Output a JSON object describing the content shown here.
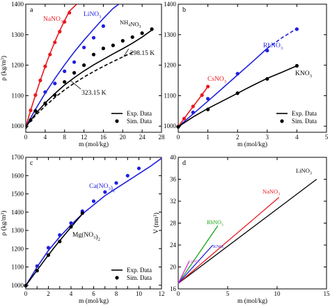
{
  "chart_data": [
    {
      "type": "line",
      "panel": "a",
      "xlabel": "m (mol/kg)",
      "ylabel": "ρ (kg/m³)",
      "xlim": [
        0,
        28
      ],
      "ylim": [
        980,
        1400
      ],
      "xticks": [
        0,
        4,
        8,
        12,
        16,
        20,
        24,
        28
      ],
      "yticks": [
        1000,
        1100,
        1200,
        1300,
        1400
      ],
      "legend": {
        "placement": "bottom-right",
        "exp_label": "Exp. Data",
        "sim_label": "Sim. Data"
      },
      "series": [
        {
          "name": "NaNO3",
          "label_main": "NaNO",
          "label_sub": "3",
          "color": "#e8191f",
          "curve": {
            "x": [
              0,
              1,
              2,
              3,
              4,
              5,
              6,
              7,
              8,
              9,
              10.5
            ],
            "y": [
              998,
              1052,
              1102,
              1150,
              1196,
              1238,
              1277,
              1313,
              1346,
              1377,
              1400
            ]
          },
          "points": {
            "x": [
              0,
              1,
              2,
              3,
              4,
              5,
              6,
              7,
              8,
              9
            ],
            "y": [
              998,
              1052,
              1102,
              1150,
              1196,
              1235,
              1275,
              1310,
              1342,
              1372
            ]
          }
        },
        {
          "name": "LiNO3",
          "label_main": "LiNO",
          "label_sub": "3",
          "color": "#1f1fe0",
          "curve": {
            "x": [
              0,
              2,
              4,
              6,
              8,
              10,
              12,
              14,
              16,
              18,
              19.2
            ],
            "y": [
              998,
              1055,
              1108,
              1156,
              1201,
              1243,
              1282,
              1318,
              1353,
              1386,
              1400
            ]
          },
          "points": {
            "x": [
              2,
              4,
              6,
              8,
              10,
              12,
              14,
              16
            ],
            "y": [
              1050,
              1112,
              1140,
              1180,
              1210,
              1258,
              1290,
              1328
            ]
          }
        },
        {
          "name": "NH4NO3",
          "label_main": "NH",
          "label_sub": "4",
          "label_main2": "NO",
          "label_sub2": "3",
          "color": "#000000",
          "curve": {
            "x": [
              0,
              2,
              4,
              6,
              8,
              10,
              12,
              14,
              16,
              18,
              20,
              22,
              24,
              26
            ],
            "y": [
              998,
              1040,
              1076,
              1107,
              1135,
              1159,
              1181,
              1201,
              1219,
              1237,
              1254,
              1272,
              1292,
              1315
            ]
          },
          "curve_dashed": {
            "x": [
              0,
              2,
              4,
              6,
              8,
              10,
              12,
              14,
              16,
              18,
              20,
              22
            ],
            "y": [
              998,
              1035,
              1066,
              1094,
              1119,
              1141,
              1161,
              1179,
              1196,
              1212,
              1227,
              1242
            ]
          },
          "points": {
            "x": [
              0,
              1,
              2,
              4,
              6,
              8,
              10,
              12,
              14,
              16,
              18,
              20,
              22,
              24,
              26
            ],
            "y": [
              998,
              1020,
              1050,
              1075,
              1102,
              1145,
              1175,
              1200,
              1235,
              1255,
              1265,
              1280,
              1292,
              1305,
              1318
            ]
          }
        }
      ],
      "annotations": [
        {
          "text": "298.15 K",
          "x": 21.5,
          "y": 1240
        },
        {
          "text": "323.15 K",
          "x": 11.5,
          "y": 1110
        }
      ]
    },
    {
      "type": "line",
      "panel": "b",
      "xlabel": "m (mol/kg)",
      "ylabel": "",
      "xlim": [
        0,
        5
      ],
      "ylim": [
        980,
        1400
      ],
      "xticks": [
        0,
        1,
        2,
        3,
        4,
        5
      ],
      "yticks": [
        1000,
        1100,
        1200,
        1300,
        1400
      ],
      "legend": {
        "placement": "bottom-right",
        "exp_label": "Exp. Data",
        "sim_label": "Sim. Data"
      },
      "series": [
        {
          "name": "RbNO3",
          "label_main": "RbNO",
          "label_sub": "3",
          "color": "#1f1fe0",
          "curve": {
            "x": [
              0,
              0.5,
              1,
              1.5,
              2,
              2.5,
              3
            ],
            "y": [
              998,
              1040,
              1082,
              1125,
              1168,
              1211,
              1255
            ]
          },
          "curve_dashed": {
            "x": [
              3,
              3.5,
              4
            ],
            "y": [
              1255,
              1290,
              1320
            ]
          },
          "points": {
            "x": [
              0,
              0.5,
              1,
              2,
              3,
              4
            ],
            "y": [
              998,
              1045,
              1090,
              1172,
              1248,
              1318
            ]
          }
        },
        {
          "name": "CsNO3",
          "label_main": "CsNO",
          "label_sub": "3",
          "color": "#e8191f",
          "curve": {
            "x": [
              0,
              0.2,
              0.4,
              0.6,
              0.8,
              1.0
            ],
            "y": [
              998,
              1025,
              1051,
              1077,
              1103,
              1130
            ]
          },
          "points": {
            "x": [
              0.2,
              0.5,
              0.8,
              1.0
            ],
            "y": [
              1025,
              1065,
              1102,
              1130
            ]
          }
        },
        {
          "name": "KNO3",
          "label_main": "KNO",
          "label_sub": "3",
          "color": "#000000",
          "curve": {
            "x": [
              0,
              0.5,
              1,
              1.5,
              2,
              2.5,
              3,
              3.5,
              4
            ],
            "y": [
              998,
              1030,
              1058,
              1083,
              1108,
              1133,
              1157,
              1177,
              1198
            ]
          },
          "points": {
            "x": [
              0,
              1,
              2,
              3,
              4
            ],
            "y": [
              998,
              1055,
              1108,
              1155,
              1198
            ]
          }
        }
      ]
    },
    {
      "type": "line",
      "panel": "c",
      "xlabel": "m (mol/kg)",
      "ylabel": "ρ (kg/m³)",
      "xlim": [
        0,
        12
      ],
      "ylim": [
        980,
        1700
      ],
      "xticks": [
        0,
        1,
        2,
        3,
        4,
        5,
        6,
        7,
        8,
        9,
        10,
        11,
        12
      ],
      "xticklabels": [
        0,
        2,
        4,
        6,
        8,
        10,
        12
      ],
      "yticks": [
        1000,
        1100,
        1200,
        1300,
        1400,
        1500,
        1600,
        1700
      ],
      "legend": {
        "placement": "bottom-right",
        "exp_label": "Exp. Data",
        "sim_label": "Sim. Data"
      },
      "series": [
        {
          "name": "Ca(NO3)2",
          "label_main": "Ca(NO",
          "label_sub": "3",
          "label_main2": ")",
          "label_sub2": "2",
          "color": "#1f1fe0",
          "curve": {
            "x": [
              0,
              1,
              2,
              3,
              4,
              5,
              6,
              7,
              8,
              9,
              10,
              11,
              12
            ],
            "y": [
              998,
              1100,
              1190,
              1265,
              1330,
              1390,
              1440,
              1490,
              1530,
              1570,
              1610,
              1650,
              1695
            ]
          },
          "points": {
            "x": [
              0,
              1,
              2,
              3,
              4,
              5,
              6,
              7,
              8,
              9,
              10
            ],
            "y": [
              998,
              1105,
              1205,
              1275,
              1340,
              1405,
              1460,
              1510,
              1560,
              1600,
              1640
            ]
          }
        },
        {
          "name": "Mg(NO3)2",
          "label_main": "Mg(NO",
          "label_sub": "3",
          "label_main2": ")",
          "label_sub2": "2",
          "color": "#000000",
          "curve": {
            "x": [
              0,
              0.5,
              1,
              1.5,
              2,
              2.5,
              3,
              3.5,
              4,
              4.5,
              5
            ],
            "y": [
              998,
              1040,
              1082,
              1124,
              1165,
              1205,
              1244,
              1281,
              1318,
              1354,
              1390
            ]
          },
          "points": {
            "x": [
              0,
              1,
              2,
              3,
              4,
              5
            ],
            "y": [
              998,
              1080,
              1165,
              1240,
              1320,
              1395
            ]
          }
        }
      ]
    },
    {
      "type": "line",
      "panel": "d",
      "xlabel": "m (mol/kg)",
      "ylabel": "V (nm³)",
      "xlim": [
        0,
        15
      ],
      "ylim": [
        16,
        40
      ],
      "xticks": [
        0,
        5,
        10,
        15
      ],
      "yticks": [
        16,
        20,
        24,
        28,
        32,
        36,
        40
      ],
      "series": [
        {
          "name": "LiNO3",
          "label_main": "LiNO",
          "label_sub": "3",
          "color": "#000000",
          "curve": {
            "x": [
              0,
              14
            ],
            "y": [
              17,
              36
            ]
          }
        },
        {
          "name": "NaNO3",
          "label_main": "NaNO",
          "label_sub": "3",
          "color": "#e8191f",
          "curve": {
            "x": [
              0,
              10.2
            ],
            "y": [
              17,
              32.7
            ]
          }
        },
        {
          "name": "RbNO3",
          "label_main": "RbNO",
          "label_sub": "3",
          "color": "#1aa31a",
          "curve": {
            "x": [
              0,
              4
            ],
            "y": [
              17,
              27.5
            ]
          }
        },
        {
          "name": "KNO3",
          "label_main": "KNO",
          "label_sub": "3",
          "color": "#1f1fe0",
          "curve": {
            "x": [
              0,
              3.5
            ],
            "y": [
              17,
              24
            ]
          }
        },
        {
          "name": "CsNO3",
          "label_main": "CsNO",
          "label_sub": "3",
          "color": "#e020e0",
          "curve": {
            "x": [
              0,
              1.1
            ],
            "y": [
              17,
              21
            ]
          }
        }
      ]
    }
  ]
}
